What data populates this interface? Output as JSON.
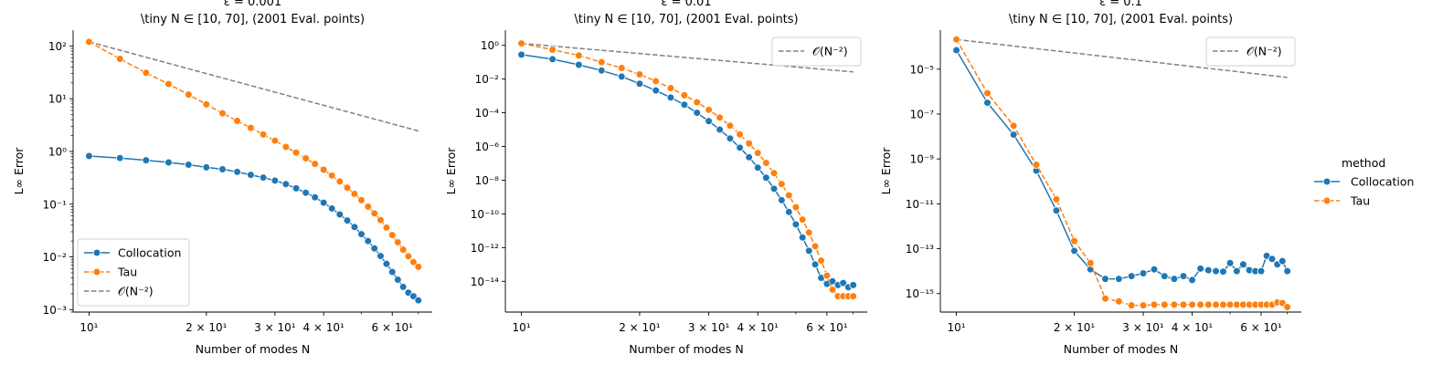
{
  "colors": {
    "collocation": "#1f77b4",
    "tau": "#ff7f0e",
    "ref": "#808080"
  },
  "figure_legend": {
    "title": "method",
    "items": [
      {
        "label": "Collocation",
        "series": "collocation"
      },
      {
        "label": "Tau",
        "series": "tau"
      }
    ]
  },
  "chart_data": [
    {
      "type": "line",
      "title": "$\\epsilon = 0.001$",
      "title_display": "ε = 0.001",
      "subtitle": "\\tiny N ∈ [10, 70], (2001 Eval. points)",
      "xlabel": "Number of modes N",
      "ylabel": "L∞ Error",
      "xscale": "log",
      "yscale": "log",
      "xlim": [
        9.1,
        76
      ],
      "ylim": [
        0.0009,
        200
      ],
      "xticks": [
        10,
        20,
        30,
        40,
        60
      ],
      "xtick_labels": [
        "10¹",
        "2 × 10¹",
        "3 × 10¹",
        "4 × 10¹",
        "6 × 10¹"
      ],
      "yticks": [
        0.001,
        0.01,
        0.1,
        1,
        10,
        100
      ],
      "ytick_labels": [
        "10⁻³",
        "10⁻²",
        "10⁻¹",
        "10⁰",
        "10¹",
        "10²"
      ],
      "legend": {
        "placement": "lower-left",
        "labels": [
          "Collocation",
          "Tau",
          "𝒪(N⁻²)"
        ]
      },
      "x": [
        10,
        12,
        14,
        16,
        18,
        20,
        22,
        24,
        26,
        28,
        30,
        32,
        34,
        36,
        38,
        40,
        42,
        44,
        46,
        48,
        50,
        52,
        54,
        56,
        58,
        60,
        62,
        64,
        66,
        68,
        70
      ],
      "series": [
        {
          "name": "Collocation",
          "key": "collocation",
          "values": [
            0.82,
            0.75,
            0.68,
            0.62,
            0.56,
            0.5,
            0.46,
            0.41,
            0.36,
            0.32,
            0.28,
            0.24,
            0.2,
            0.165,
            0.135,
            0.107,
            0.083,
            0.064,
            0.049,
            0.037,
            0.027,
            0.02,
            0.0145,
            0.0104,
            0.0074,
            0.0052,
            0.0037,
            0.0027,
            0.0021,
            0.0018,
            0.0015
          ]
        },
        {
          "name": "Tau",
          "key": "tau",
          "values": [
            120,
            57,
            31,
            19,
            12,
            7.8,
            5.3,
            3.8,
            2.8,
            2.1,
            1.6,
            1.22,
            0.95,
            0.74,
            0.58,
            0.45,
            0.35,
            0.27,
            0.205,
            0.157,
            0.119,
            0.09,
            0.067,
            0.05,
            0.036,
            0.026,
            0.019,
            0.0137,
            0.0103,
            0.008,
            0.0065
          ]
        },
        {
          "name": "𝒪(N⁻²)",
          "key": "ref",
          "line_only": true,
          "x": [
            10,
            70
          ],
          "values": [
            120,
            2.45
          ]
        }
      ]
    },
    {
      "type": "line",
      "title": "$\\epsilon = 0.01$",
      "title_display": "ε = 0.01",
      "subtitle": "\\tiny N ∈ [10, 70], (2001 Eval. points)",
      "xlabel": "Number of modes N",
      "ylabel": "L∞ Error",
      "xscale": "log",
      "yscale": "log",
      "xlim": [
        9.1,
        76
      ],
      "ylim": [
        1.5e-16,
        8
      ],
      "xticks": [
        10,
        20,
        30,
        40,
        60
      ],
      "xtick_labels": [
        "10¹",
        "2 × 10¹",
        "3 × 10¹",
        "4 × 10¹",
        "6 × 10¹"
      ],
      "yticks": [
        1e-14,
        1e-12,
        1e-10,
        1e-08,
        1e-06,
        0.0001,
        0.01,
        1
      ],
      "ytick_labels": [
        "10⁻¹⁴",
        "10⁻¹²",
        "10⁻¹⁰",
        "10⁻⁸",
        "10⁻⁶",
        "10⁻⁴",
        "10⁻²",
        "10⁰"
      ],
      "legend": {
        "placement": "upper-right",
        "labels": [
          "𝒪(N⁻²)"
        ]
      },
      "x": [
        10,
        12,
        14,
        16,
        18,
        20,
        22,
        24,
        26,
        28,
        30,
        32,
        34,
        36,
        38,
        40,
        42,
        44,
        46,
        48,
        50,
        52,
        54,
        56,
        58,
        60,
        62,
        64,
        66,
        68,
        70
      ],
      "series": [
        {
          "name": "Collocation",
          "key": "collocation",
          "values": [
            0.28,
            0.15,
            0.07,
            0.032,
            0.014,
            0.0053,
            0.0021,
            0.0008,
            0.0003,
            0.0001,
            3.2e-05,
            1e-05,
            3e-06,
            8.5e-07,
            2.3e-07,
            5.5e-08,
            1.4e-08,
            3.1e-09,
            6.5e-10,
            1.3e-10,
            2.4e-11,
            4e-12,
            6.5e-13,
            1e-13,
            1.6e-14,
            7e-15,
            1e-14,
            6e-15,
            8e-15,
            4.5e-15,
            6e-15
          ]
        },
        {
          "name": "Tau",
          "key": "tau",
          "values": [
            1.3,
            0.55,
            0.25,
            0.1,
            0.045,
            0.019,
            0.0075,
            0.0029,
            0.0011,
            0.00042,
            0.00015,
            5.2e-05,
            1.7e-05,
            5.2e-06,
            1.5e-06,
            4.1e-07,
            1.06e-07,
            2.6e-08,
            5.9e-09,
            1.26e-09,
            2.5e-10,
            4.6e-11,
            7.8e-12,
            1.2e-12,
            1.7e-13,
            2.2e-14,
            3.2e-15,
            1.3e-15,
            1.3e-15,
            1.3e-15,
            1.3e-15
          ]
        },
        {
          "name": "𝒪(N⁻²)",
          "key": "ref",
          "line_only": true,
          "x": [
            10,
            70
          ],
          "values": [
            1.3,
            0.0265
          ]
        }
      ]
    },
    {
      "type": "line",
      "title": "$\\epsilon = 0.1$",
      "title_display": "ε = 0.1",
      "subtitle": "\\tiny N ∈ [10, 70], (2001 Eval. points)",
      "xlabel": "Number of modes N",
      "ylabel": "L∞ Error",
      "xscale": "log",
      "yscale": "log",
      "xlim": [
        9.1,
        76
      ],
      "ylim": [
        1.5e-16,
        0.00055
      ],
      "xticks": [
        10,
        20,
        30,
        40,
        60
      ],
      "xtick_labels": [
        "10¹",
        "2 × 10¹",
        "3 × 10¹",
        "4 × 10¹",
        "6 × 10¹"
      ],
      "yticks": [
        1e-15,
        1e-13,
        1e-11,
        1e-09,
        1e-07,
        1e-05
      ],
      "ytick_labels": [
        "10⁻¹⁵",
        "10⁻¹³",
        "10⁻¹¹",
        "10⁻⁹",
        "10⁻⁷",
        "10⁻⁵"
      ],
      "legend": {
        "placement": "upper-right",
        "labels": [
          "𝒪(N⁻²)"
        ]
      },
      "x_collocation": [
        10,
        12,
        14,
        16,
        18,
        20,
        22,
        24,
        26,
        28,
        30,
        32,
        34,
        36,
        38,
        40,
        42,
        44,
        46,
        48,
        50,
        52,
        54,
        56,
        58,
        60,
        62,
        64,
        66,
        68,
        70
      ],
      "x_tau": [
        10,
        12,
        14,
        16,
        18,
        20,
        22,
        24,
        26,
        28,
        30,
        32,
        34,
        36,
        38,
        40,
        42,
        44,
        46,
        48,
        50,
        52,
        54,
        56,
        58,
        60,
        62,
        64,
        66,
        68,
        70
      ],
      "series": [
        {
          "name": "Collocation",
          "key": "collocation",
          "x": [
            10,
            12,
            14,
            16,
            18,
            20,
            22,
            24,
            26,
            28,
            30,
            32,
            34,
            36,
            38,
            40,
            42,
            44,
            46,
            48,
            50,
            52,
            54,
            56,
            58,
            60,
            62,
            64,
            66,
            68,
            70
          ],
          "values": [
            7e-05,
            3.2e-07,
            1.2e-08,
            3e-10,
            5e-12,
            8e-14,
            1.2e-14,
            4.5e-15,
            4.5e-15,
            6e-15,
            8e-15,
            1.2e-14,
            6e-15,
            4.5e-15,
            6e-15,
            4e-15,
            1.3e-14,
            1.1e-14,
            1e-14,
            9.5e-15,
            2.3e-14,
            1e-14,
            2e-14,
            1.1e-14,
            1e-14,
            1e-14,
            4.8e-14,
            3.5e-14,
            2e-14,
            2.8e-14,
            1e-14
          ]
        },
        {
          "name": "Tau",
          "key": "tau",
          "x": [
            10,
            12,
            14,
            16,
            18,
            20,
            22,
            24,
            26,
            28,
            30,
            32,
            34,
            36,
            38,
            40,
            42,
            44,
            46,
            48,
            50,
            52,
            54,
            56,
            58,
            60,
            62,
            64,
            66,
            68,
            70
          ],
          "values": [
            0.00021,
            8.5e-07,
            3e-08,
            5.5e-10,
            1.6e-11,
            2.2e-13,
            2.3e-14,
            6e-16,
            4.5e-16,
            3e-16,
            3e-16,
            3.2e-16,
            3.2e-16,
            3.2e-16,
            3.2e-16,
            3.2e-16,
            3.2e-16,
            3.2e-16,
            3.2e-16,
            3.2e-16,
            3.2e-16,
            3.2e-16,
            3.2e-16,
            3.2e-16,
            3.2e-16,
            3.2e-16,
            3.2e-16,
            3.2e-16,
            4e-16,
            3.8e-16,
            2.5e-16
          ]
        },
        {
          "name": "𝒪(N⁻²)",
          "key": "ref",
          "line_only": true,
          "x": [
            10,
            70
          ],
          "values": [
            0.00021,
            4.3e-06
          ]
        }
      ]
    }
  ]
}
